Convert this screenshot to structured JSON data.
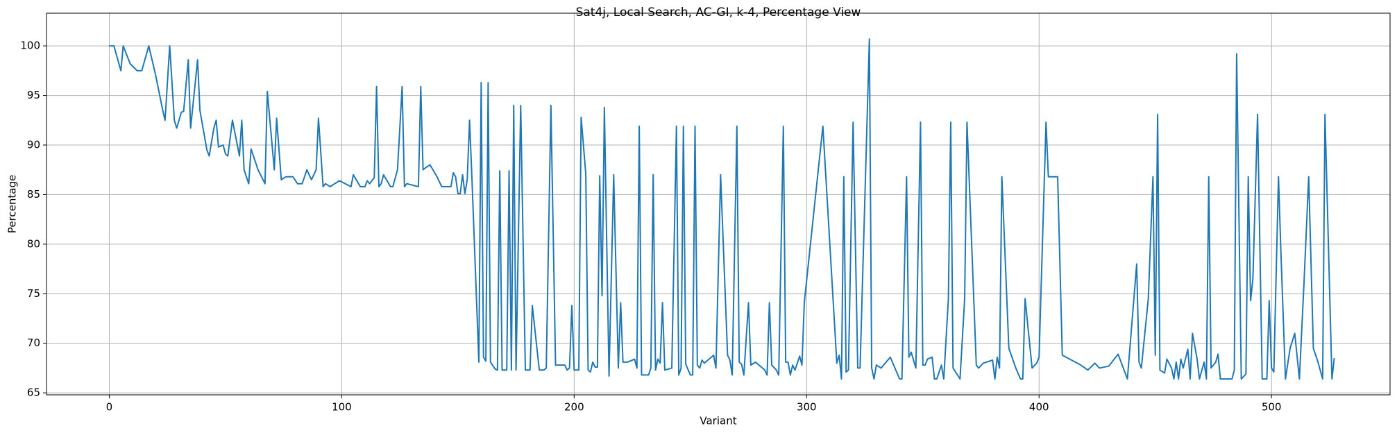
{
  "chart_data": {
    "type": "line",
    "title": "Sat4j, Local Search, AC-GI, k-4, Percentage View",
    "x_label": "Variant",
    "y_label": "Percentage",
    "xlim": [
      -27,
      551
    ],
    "ylim": [
      64.8,
      103.3
    ],
    "xticks": [
      0,
      100,
      200,
      300,
      400,
      500
    ],
    "yticks": [
      65,
      70,
      75,
      80,
      85,
      90,
      95,
      100
    ],
    "grid": true,
    "series": [
      {
        "color": "#1f77b4",
        "x": [
          0,
          2,
          5,
          6,
          9,
          12,
          14,
          17,
          20,
          23,
          24,
          26,
          28,
          29,
          31,
          32,
          34,
          35,
          38,
          39,
          42,
          43,
          45,
          46,
          47,
          49,
          50,
          51,
          53,
          56,
          57,
          58,
          60,
          61,
          64,
          67,
          68,
          71,
          72,
          74,
          76,
          79,
          81,
          83,
          85,
          87,
          89,
          90,
          92,
          93,
          95,
          99,
          104,
          105,
          108,
          110,
          111,
          112,
          114,
          115,
          116,
          117,
          118,
          121,
          122,
          124,
          126,
          127,
          128,
          133,
          134,
          135,
          136,
          138,
          141,
          143,
          147,
          148,
          149,
          150,
          151,
          152,
          153,
          154,
          155,
          156,
          159,
          160,
          161,
          162,
          163,
          164,
          166,
          167,
          168,
          169,
          171,
          172,
          173,
          174,
          175,
          177,
          179,
          181,
          182,
          185,
          187,
          188,
          190,
          192,
          194,
          196,
          197,
          198,
          199,
          200,
          202,
          203,
          205,
          206,
          207,
          208,
          209,
          210,
          211,
          212,
          213,
          215,
          217,
          219,
          220,
          221,
          223,
          226,
          227,
          228,
          229,
          231,
          232,
          233,
          234,
          235,
          236,
          237,
          238,
          239,
          242,
          244,
          245,
          246,
          247,
          248,
          250,
          251,
          252,
          253,
          254,
          255,
          256,
          260,
          261,
          263,
          266,
          267,
          268,
          270,
          271,
          272,
          273,
          275,
          276,
          278,
          282,
          283,
          284,
          285,
          287,
          288,
          290,
          291,
          292,
          293,
          294,
          295,
          297,
          298,
          299,
          307,
          313,
          314,
          315,
          316,
          317,
          318,
          320,
          322,
          323,
          327,
          328,
          329,
          330,
          332,
          336,
          340,
          341,
          343,
          344,
          345,
          347,
          349,
          350,
          351,
          352,
          354,
          355,
          356,
          358,
          359,
          361,
          362,
          363,
          366,
          368,
          369,
          373,
          374,
          376,
          380,
          381,
          382,
          383,
          384,
          387,
          390,
          392,
          393,
          394,
          397,
          399,
          400,
          403,
          404,
          408,
          410,
          418,
          421,
          424,
          426,
          430,
          434,
          438,
          442,
          443,
          444,
          447,
          449,
          450,
          451,
          452,
          454,
          455,
          457,
          458,
          459,
          460,
          461,
          462,
          464,
          465,
          466,
          468,
          469,
          471,
          472,
          473,
          474,
          476,
          477,
          478,
          483,
          484,
          485,
          487,
          489,
          490,
          491,
          492,
          494,
          496,
          498,
          499,
          500,
          501,
          503,
          504,
          506,
          508,
          510,
          512,
          514,
          516,
          518,
          520,
          522,
          523,
          526,
          527
        ],
        "values": [
          100,
          100,
          97.5,
          100,
          98.2,
          97.5,
          97.5,
          100,
          97,
          93.5,
          92.5,
          100,
          92.5,
          91.7,
          93.3,
          93.4,
          98.6,
          91.7,
          98.6,
          93.5,
          89.5,
          88.9,
          91.7,
          92.5,
          89.8,
          90,
          89.1,
          88.9,
          92.5,
          88.9,
          92.5,
          87.5,
          86.1,
          89.6,
          87.5,
          86.1,
          95.4,
          87.5,
          92.7,
          86.5,
          86.8,
          86.8,
          86.1,
          86.1,
          87.5,
          86.5,
          87.5,
          92.7,
          85.8,
          86.1,
          85.8,
          86.4,
          85.8,
          87,
          85.8,
          85.8,
          86.4,
          86.1,
          86.7,
          95.9,
          85.8,
          86.1,
          87,
          85.8,
          85.8,
          87.5,
          95.9,
          85.8,
          86.1,
          85.8,
          95.9,
          87.5,
          87.7,
          88,
          86.8,
          85.8,
          85.8,
          87.2,
          86.8,
          85.1,
          85.1,
          87,
          85.1,
          86.5,
          92.5,
          86.8,
          68.1,
          96.3,
          68.6,
          68.2,
          96.3,
          68.1,
          67.4,
          67.3,
          87.4,
          67.3,
          67.3,
          87.4,
          67.3,
          94,
          67.3,
          94,
          67.3,
          67.3,
          73.8,
          67.3,
          67.3,
          67.5,
          94,
          67.8,
          67.8,
          67.8,
          67.3,
          67.5,
          73.8,
          67.3,
          67.3,
          92.8,
          87.1,
          67.3,
          67.1,
          68.1,
          67.6,
          67.6,
          86.9,
          74.8,
          93.8,
          66.7,
          87,
          67.5,
          74.1,
          68.1,
          68.1,
          68.4,
          67.5,
          91.9,
          66.8,
          66.8,
          66.8,
          67.5,
          87,
          67.3,
          68.4,
          68,
          74.1,
          67.3,
          67.5,
          91.9,
          66.8,
          67.5,
          91.9,
          67.9,
          66.8,
          66.8,
          91.9,
          67.8,
          67.5,
          68.3,
          68,
          68.8,
          67.5,
          87,
          68.8,
          68.3,
          66.8,
          91.9,
          68.1,
          67.9,
          66.8,
          74.1,
          67.8,
          68.1,
          67.3,
          66.8,
          74.1,
          67.8,
          67.3,
          66.8,
          91.9,
          68.1,
          68.1,
          66.8,
          67.8,
          67.3,
          68.7,
          67.8,
          74.1,
          91.9,
          68,
          68.8,
          66.4,
          86.8,
          67.1,
          67.3,
          92.3,
          67.5,
          67.5,
          100.7,
          67.5,
          66.4,
          67.8,
          67.5,
          68.6,
          66.4,
          66.4,
          86.8,
          68.6,
          69.1,
          67.5,
          92.3,
          67.8,
          67.8,
          68.4,
          68.6,
          66.4,
          66.4,
          67.8,
          66.4,
          74.5,
          92.3,
          67.5,
          66.4,
          74.5,
          92.3,
          67.8,
          67.5,
          68,
          68.3,
          66.4,
          68.6,
          67.5,
          86.8,
          69.5,
          67.5,
          66.4,
          66.4,
          74.5,
          67.5,
          68,
          68.6,
          92.3,
          86.8,
          86.8,
          68.8,
          67.8,
          67.3,
          68,
          67.5,
          67.7,
          68.9,
          66.4,
          78,
          68.1,
          67.5,
          74.5,
          86.8,
          68.8,
          93.1,
          67.3,
          67,
          68.4,
          67.5,
          66.4,
          68.1,
          66.4,
          68.4,
          67.5,
          69.4,
          66.4,
          71,
          68.4,
          66.4,
          68.1,
          66.4,
          86.8,
          67.5,
          68.1,
          68.9,
          66.4,
          66.4,
          67.3,
          99.2,
          66.4,
          66.9,
          86.8,
          74.3,
          76.5,
          93.1,
          66.4,
          66.4,
          74.3,
          67.5,
          67.1,
          86.8,
          79.5,
          66.4,
          69.5,
          71,
          66.4,
          76.2,
          86.8,
          69.5,
          68.1,
          66.4,
          93.1,
          66.4,
          68.5
        ]
      }
    ]
  }
}
